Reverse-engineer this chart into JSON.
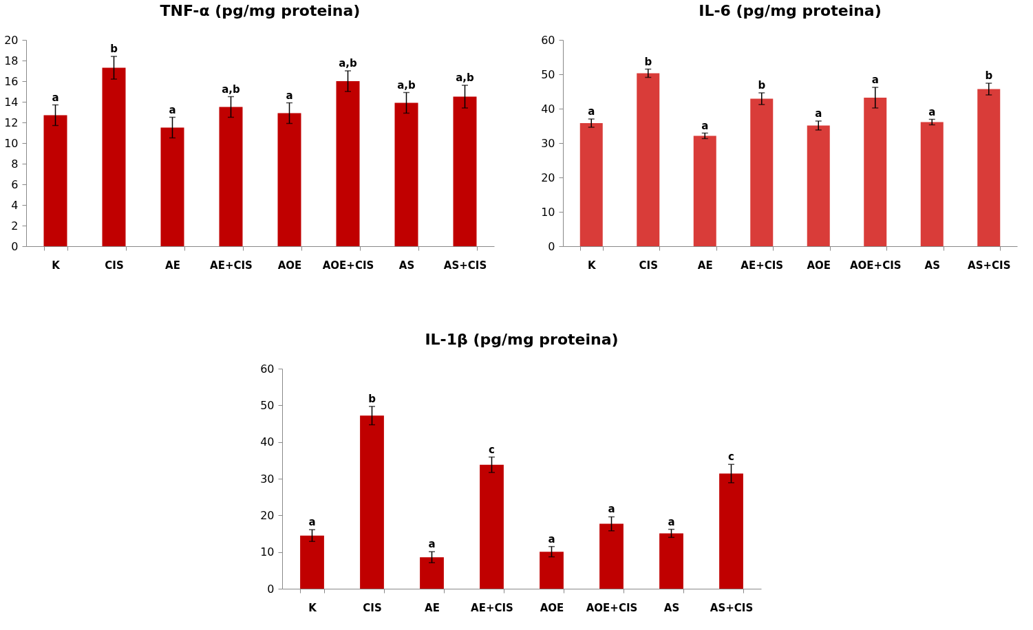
{
  "chart_data": [
    {
      "type": "bar",
      "title": "TNF-α (pg/mg proteina)",
      "categories": [
        "K",
        "CIS",
        "AE",
        "AE+CIS",
        "AOE",
        "AOE+CIS",
        "AS",
        "AS+CIS"
      ],
      "values": [
        12.7,
        17.3,
        11.5,
        13.5,
        12.9,
        16.0,
        13.9,
        14.5
      ],
      "errors": [
        1,
        1.1,
        1,
        1,
        1,
        1,
        1,
        1.1
      ],
      "color": "#c00000",
      "ylim": [
        0,
        20
      ],
      "yticks": [
        0,
        2,
        4,
        6,
        8,
        10,
        12,
        14,
        16,
        18,
        20
      ],
      "grid": false,
      "annotations": [
        {
          "text": "a",
          "x": "K",
          "y": 13.7
        },
        {
          "text": "b",
          "x": "CIS",
          "y": 18.4
        },
        {
          "text": "a",
          "x": "AE",
          "y": 12.5
        },
        {
          "text": "a,b",
          "x": "AE+CIS",
          "y": 14.5
        },
        {
          "text": "a",
          "x": "AOE",
          "y": 13.9
        },
        {
          "text": "a,b",
          "x": "AOE+CIS",
          "y": 17.0
        },
        {
          "text": "a,b",
          "x": "AS",
          "y": 14.9
        },
        {
          "text": "a,b",
          "x": "AS+CIS",
          "y": 15.6
        }
      ]
    },
    {
      "type": "bar",
      "title": "IL-6 (pg/mg proteina)",
      "categories": [
        "K",
        "CIS",
        "AE",
        "AE+CIS",
        "AOE",
        "AOE+CIS",
        "AS",
        "AS+CIS"
      ],
      "values": [
        35.8,
        50.3,
        32.1,
        42.9,
        35.1,
        43.2,
        36.1,
        45.7
      ],
      "errors": [
        1.2,
        1.2,
        0.8,
        1.7,
        1.3,
        3,
        0.8,
        1.7
      ],
      "color": "#d93c39",
      "ylim": [
        0,
        60
      ],
      "yticks": [
        0,
        10,
        20,
        30,
        40,
        50,
        60
      ],
      "grid": false,
      "annotations": [
        {
          "text": "a",
          "x": "K",
          "y": 37.0
        },
        {
          "text": "b",
          "x": "CIS",
          "y": 51.5
        },
        {
          "text": "a",
          "x": "AE",
          "y": 32.9
        },
        {
          "text": "b",
          "x": "AE+CIS",
          "y": 44.6
        },
        {
          "text": "a",
          "x": "AOE",
          "y": 36.4
        },
        {
          "text": "a",
          "x": "AOE+CIS",
          "y": 46.2
        },
        {
          "text": "a",
          "x": "AS",
          "y": 36.9
        },
        {
          "text": "b",
          "x": "AS+CIS",
          "y": 47.4
        }
      ]
    },
    {
      "type": "bar",
      "title": "IL-1β (pg/mg proteina)",
      "categories": [
        "K",
        "CIS",
        "AE",
        "AE+CIS",
        "AOE",
        "AOE+CIS",
        "AS",
        "AS+CIS"
      ],
      "values": [
        14.5,
        47.2,
        8.6,
        33.8,
        10.1,
        17.7,
        15.1,
        31.4
      ],
      "errors": [
        1.6,
        2.5,
        1.5,
        2.1,
        1.4,
        1.9,
        1.1,
        2.5
      ],
      "color": "#c00000",
      "ylim": [
        0,
        60
      ],
      "yticks": [
        0,
        10,
        20,
        30,
        40,
        50,
        60
      ],
      "grid": false,
      "annotations": [
        {
          "text": "a",
          "x": "K",
          "y": 16.1
        },
        {
          "text": "b",
          "x": "CIS",
          "y": 49.7
        },
        {
          "text": "a",
          "x": "AE",
          "y": 10.1
        },
        {
          "text": "c",
          "x": "AE+CIS",
          "y": 35.9
        },
        {
          "text": "a",
          "x": "AOE",
          "y": 11.5
        },
        {
          "text": "a",
          "x": "AOE+CIS",
          "y": 19.6
        },
        {
          "text": "a",
          "x": "AS",
          "y": 16.2
        },
        {
          "text": "c",
          "x": "AS+CIS",
          "y": 33.9
        }
      ]
    }
  ]
}
